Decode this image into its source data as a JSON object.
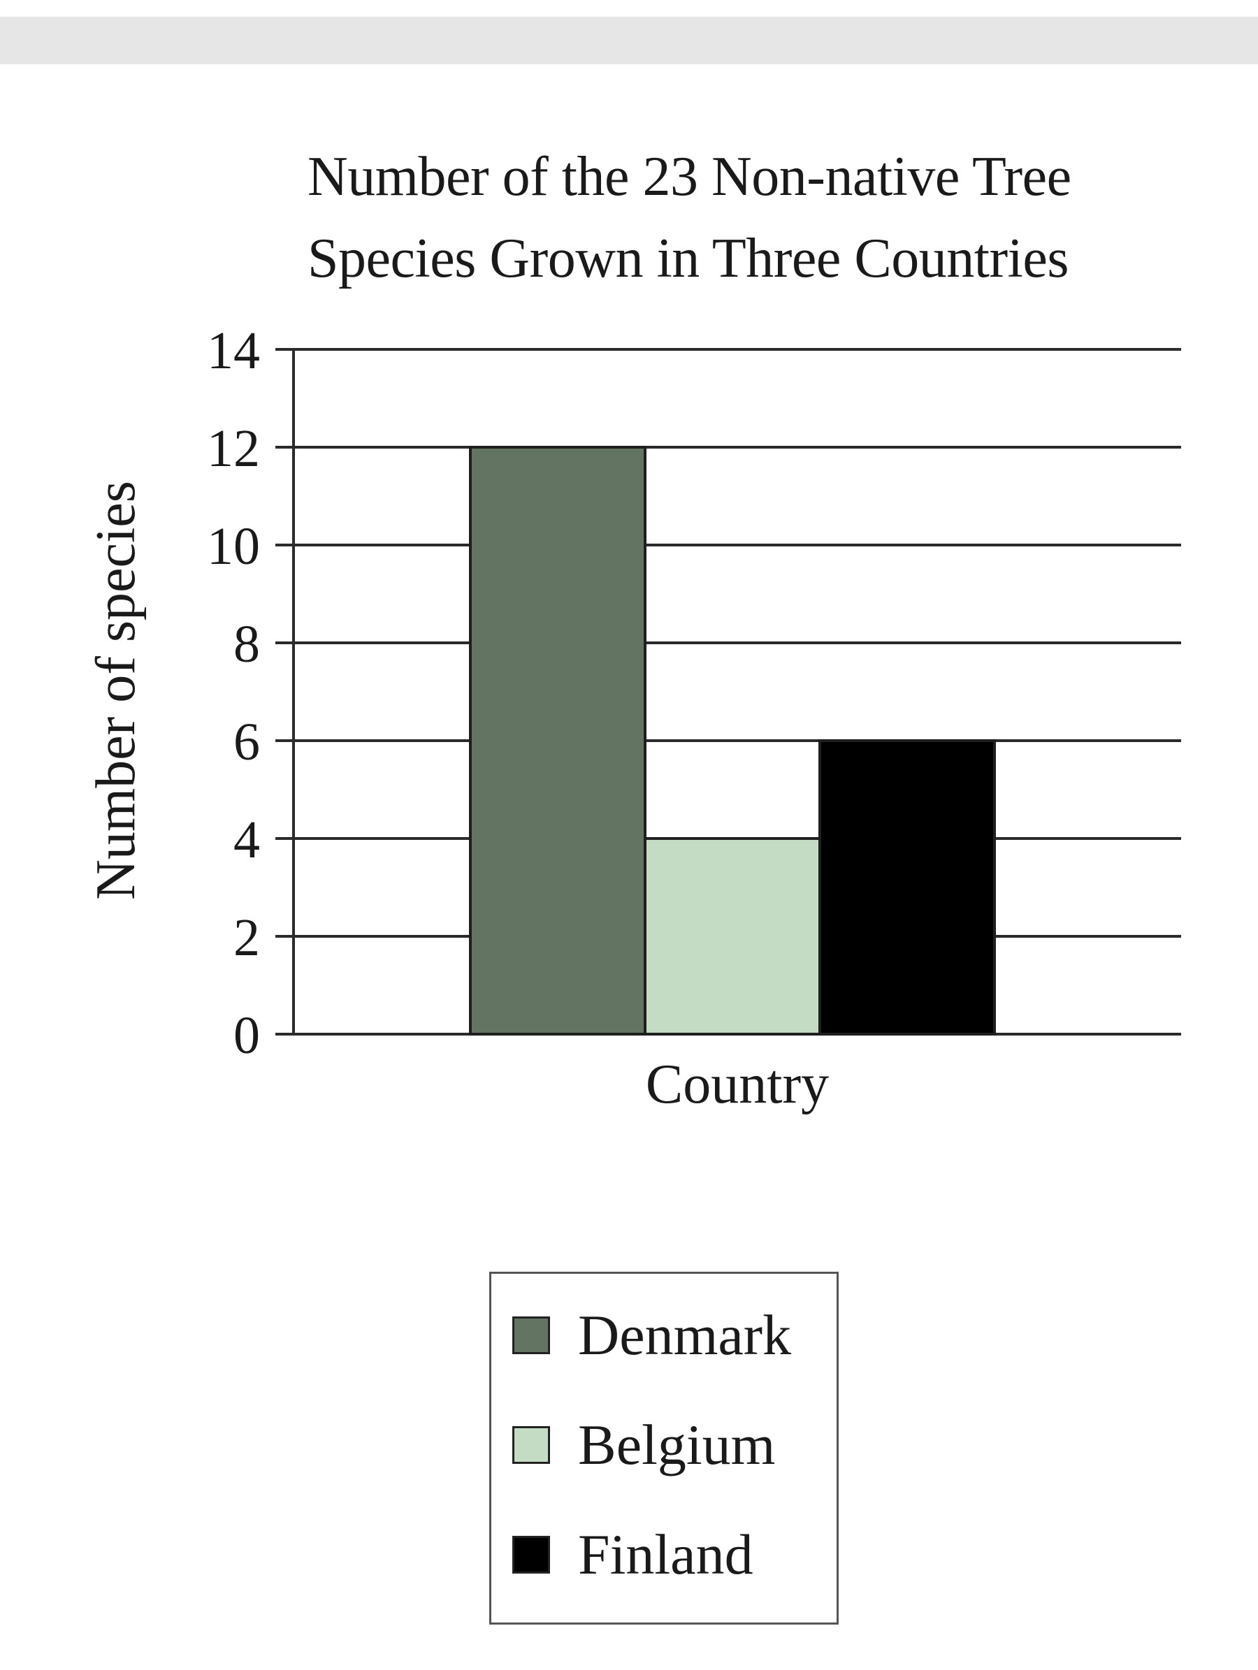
{
  "chart_data": {
    "type": "bar",
    "title": [
      "Number of the 23 Non-native Tree",
      "Species Grown in Three Countries"
    ],
    "xlabel": "Country",
    "ylabel": "Number of species",
    "ylim": [
      0,
      14
    ],
    "yticks": [
      0,
      2,
      4,
      6,
      8,
      10,
      12,
      14
    ],
    "grid": true,
    "legend_position": "bottom",
    "series": [
      {
        "name": "Denmark",
        "value": 12,
        "color": "#647462"
      },
      {
        "name": "Belgium",
        "value": 4,
        "color": "#c5dcc4"
      },
      {
        "name": "Finland",
        "value": 6,
        "color": "#000000"
      }
    ]
  }
}
